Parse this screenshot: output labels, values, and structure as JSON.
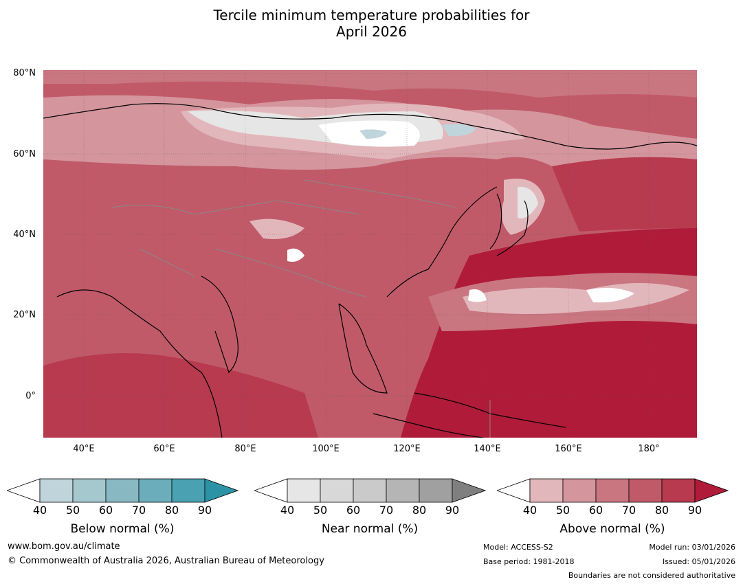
{
  "title": {
    "line1": "Tercile minimum temperature probabilities for",
    "line2": "April 2026"
  },
  "map": {
    "lat_labels": [
      "80°N",
      "60°N",
      "40°N",
      "20°N",
      "0°"
    ],
    "lon_labels": [
      "40°E",
      "60°E",
      "80°E",
      "100°E",
      "120°E",
      "140°E",
      "160°E",
      "180°"
    ],
    "extent": {
      "lon_min": 30,
      "lon_max": 192,
      "lat_min": -10,
      "lat_max": 80
    }
  },
  "colorbars": [
    {
      "title": "Below normal (%)",
      "ticks": [
        "40",
        "50",
        "60",
        "70",
        "80",
        "90"
      ],
      "colors": [
        "#bfd4db",
        "#a5c8cf",
        "#88b9c3",
        "#6badbb",
        "#49a1b1",
        "#2c93a6"
      ]
    },
    {
      "title": "Near normal (%)",
      "ticks": [
        "40",
        "50",
        "60",
        "70",
        "80",
        "90"
      ],
      "colors": [
        "#e6e6e6",
        "#d8d8d8",
        "#cacaca",
        "#b5b5b5",
        "#a0a0a0",
        "#7f7f7f"
      ]
    },
    {
      "title": "Above normal (%)",
      "ticks": [
        "40",
        "50",
        "60",
        "70",
        "80",
        "90"
      ],
      "colors": [
        "#e2b7bc",
        "#d4959d",
        "#c97681",
        "#c05a69",
        "#b73a4f",
        "#b01b39"
      ]
    }
  ],
  "footer": {
    "website": "www.bom.gov.au/climate",
    "copyright": "© Commonwealth of Australia 2026, Australian Bureau of Meteorology",
    "model": "Model: ACCESS-S2",
    "base_period": "Base period: 1981-2018",
    "model_run": "Model run: 03/01/2026",
    "issued": "Issued: 05/01/2026",
    "disclaimer": "Boundaries are not considered authoritative"
  }
}
